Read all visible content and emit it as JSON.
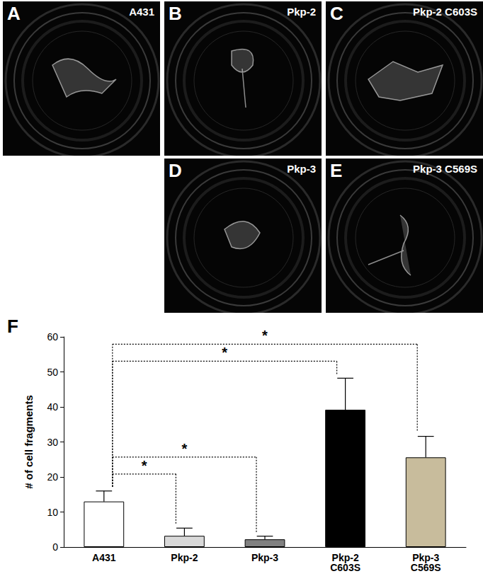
{
  "photo_panels": [
    {
      "letter": "A",
      "label": "A431"
    },
    {
      "letter": "B",
      "label": "Pkp-2"
    },
    {
      "letter": "C",
      "label": "Pkp-2 C603S"
    },
    {
      "letter": "D",
      "label": "Pkp-3"
    },
    {
      "letter": "E",
      "label": "Pkp-3 C569S"
    }
  ],
  "chart_data": {
    "type": "bar",
    "panel": "F",
    "y_label": "# of cell fragments",
    "categories": [
      "A431",
      "Pkp-2",
      "Pkp-3",
      "Pkp-2 C603S",
      "Pkp-3 C569S"
    ],
    "values": [
      13,
      3.2,
      2.2,
      39.2,
      25.6
    ],
    "errors": [
      3,
      2.2,
      0.9,
      9,
      6
    ],
    "colors": [
      "#ffffff",
      "#d9d9d9",
      "#808080",
      "#000000",
      "#c8bc9c"
    ],
    "ylim": [
      0,
      60
    ],
    "yticks": [
      0,
      10,
      20,
      30,
      40,
      50,
      60
    ],
    "significance": [
      {
        "from": "A431",
        "to": "Pkp-2",
        "label": "*"
      },
      {
        "from": "A431",
        "to": "Pkp-3",
        "label": "*"
      },
      {
        "from": "A431",
        "to": "Pkp-2 C603S",
        "label": "*"
      },
      {
        "from": "A431",
        "to": "Pkp-3 C569S",
        "label": "*"
      }
    ]
  }
}
